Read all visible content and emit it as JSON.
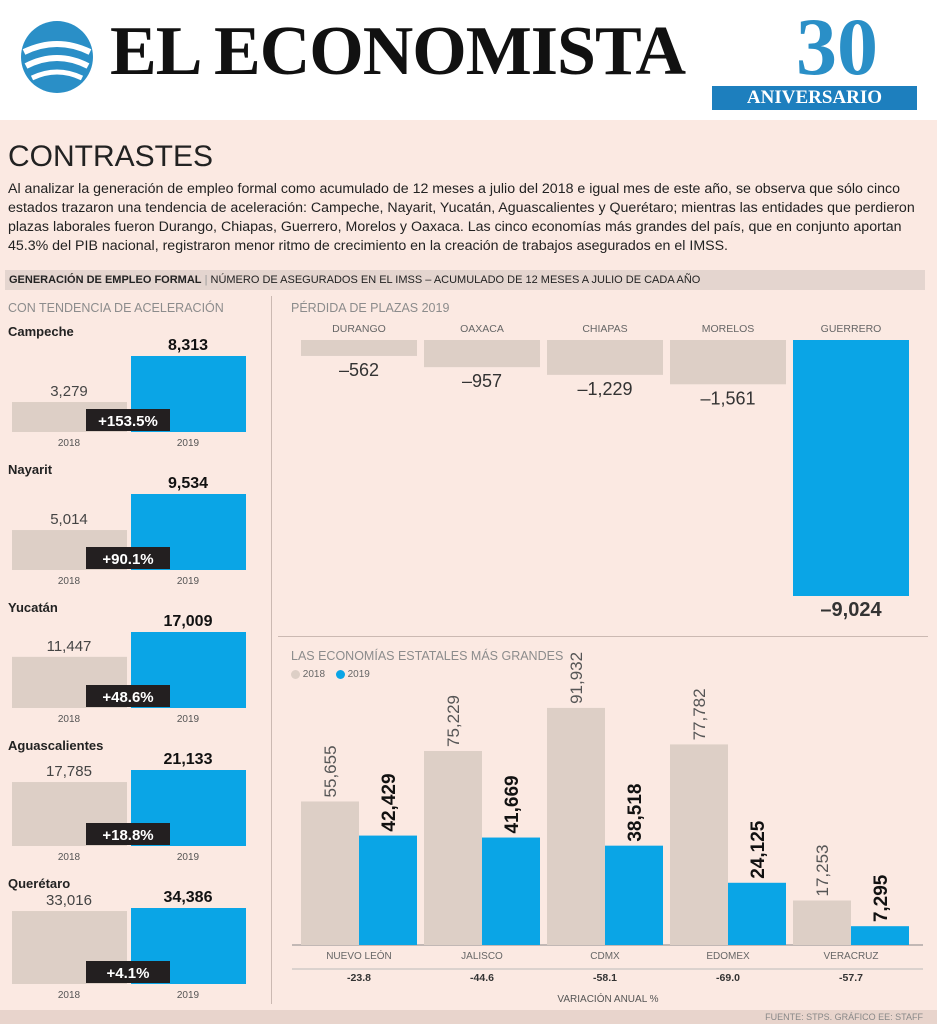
{
  "masthead": {
    "brand": "EL ECONOMISTA",
    "anniversary_number": "30",
    "anniversary_label": "ANIVERSARIO",
    "brand_color": "#2a8fc7"
  },
  "article": {
    "section_title": "CONTRASTES",
    "intro": "Al analizar la generación de empleo formal como acumulado de 12 meses a julio del 2018 e igual mes de este año, se observa que sólo cinco estados trazaron una tendencia de aceleración: Campeche, Nayarit, Yucatán, Aguascalientes y Querétaro; mientras las entidades que perdieron plazas laborales fueron Durango, Chiapas, Guerrero, Morelos y Oaxaca. Las cinco economías más grandes del país, que en conjunto aportan 45.3% del PIB nacional, registraron menor ritmo de crecimiento en la creación de trabajos asegurados en el IMSS."
  },
  "chart_header": {
    "title": "GENERACIÓN DE EMPLEO FORMAL",
    "subtitle": "NÚMERO DE ASEGURADOS EN EL IMSS – ACUMULADO DE 12 MESES A JULIO DE CADA AÑO"
  },
  "colors": {
    "y2018": "#ddcfc6",
    "y2019": "#0aa5e6",
    "badge": "#231f20"
  },
  "chart_data": [
    {
      "type": "bar",
      "title": "CON TENDENCIA DE ACELERACIÓN",
      "categories": [
        "2018",
        "2019"
      ],
      "states": [
        {
          "name": "Campeche",
          "v2018": 3279,
          "v2019": 8313,
          "l2018": "3,279",
          "l2019": "8,313",
          "change": "+153.5%"
        },
        {
          "name": "Nayarit",
          "v2018": 5014,
          "v2019": 9534,
          "l2018": "5,014",
          "l2019": "9,534",
          "change": "+90.1%"
        },
        {
          "name": "Yucatán",
          "v2018": 11447,
          "v2019": 17009,
          "l2018": "11,447",
          "l2019": "17,009",
          "change": "+48.6%"
        },
        {
          "name": "Aguascalientes",
          "v2018": 17785,
          "v2019": 21133,
          "l2018": "17,785",
          "l2019": "21,133",
          "change": "+18.8%"
        },
        {
          "name": "Querétaro",
          "v2018": 33016,
          "v2019": 34386,
          "l2018": "33,016",
          "l2019": "34,386",
          "change": "+4.1%"
        }
      ]
    },
    {
      "type": "bar",
      "title": "PÉRDIDA DE PLAZAS 2019",
      "categories": [
        "DURANGO",
        "OAXACA",
        "CHIAPAS",
        "MORELOS",
        "GUERRERO"
      ],
      "values": [
        -562,
        -957,
        -1229,
        -1561,
        -9024
      ],
      "labels": [
        "–562",
        "–957",
        "–1,229",
        "–1,561",
        "–9,024"
      ]
    },
    {
      "type": "bar",
      "title": "LAS ECONOMÍAS ESTATALES MÁS GRANDES",
      "legend": [
        "2018",
        "2019"
      ],
      "categories": [
        "NUEVO LEÓN",
        "JALISCO",
        "CDMX",
        "EDOMEX",
        "VERACRUZ"
      ],
      "series": [
        {
          "name": "2018",
          "values": [
            55655,
            75229,
            91932,
            77782,
            17253
          ],
          "labels": [
            "55,655",
            "75,229",
            "91,932",
            "77,782",
            "17,253"
          ]
        },
        {
          "name": "2019",
          "values": [
            42429,
            41669,
            38518,
            24125,
            7295
          ],
          "labels": [
            "42,429",
            "41,669",
            "38,518",
            "24,125",
            "7,295"
          ]
        }
      ],
      "variation": [
        "-23.8",
        "-44.6",
        "-58.1",
        "-69.0",
        "-57.7"
      ],
      "variation_label": "VARIACIÓN ANUAL %"
    }
  ],
  "footer": {
    "source": "FUENTE: STPS. GRÁFICO EE: STAFF"
  }
}
